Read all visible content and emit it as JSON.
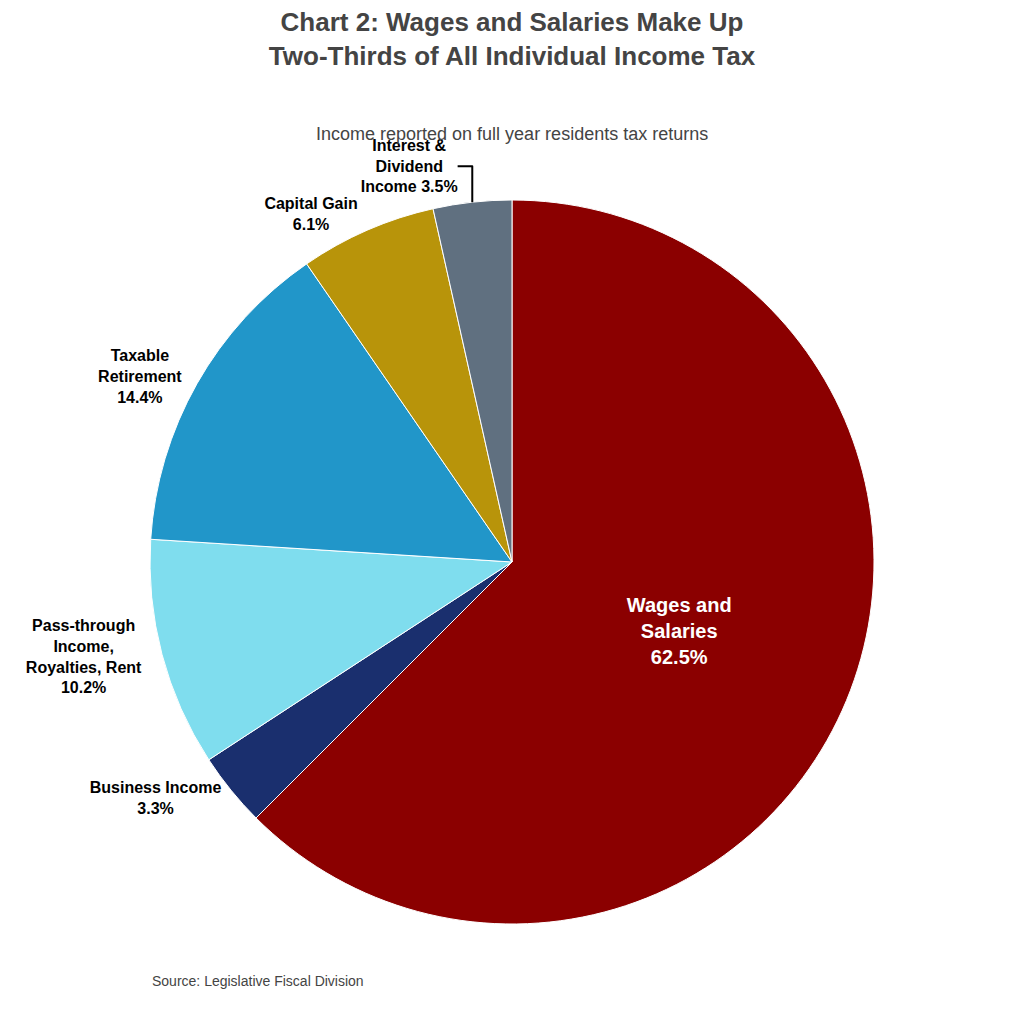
{
  "chart_data": {
    "type": "pie",
    "title": "Chart 2: Wages and Salaries Make Up\nTwo-Thirds of All Individual Income Tax",
    "subtitle": "Income reported on full year residents tax returns",
    "annotations": [
      "Source: Legislative Fiscal Division"
    ],
    "categories": [
      "Wages and\nSalaries\n62.5%",
      "Business Income\n3.3%",
      "Pass-through\nIncome,\nRoyalties, Rent\n10.2%",
      "Taxable\nRetirement\n14.4%",
      "Capital Gain\n6.1%",
      "Interest &\nDividend\nIncome 3.5%"
    ],
    "values": [
      62.5,
      3.3,
      10.2,
      14.4,
      6.1,
      3.5
    ],
    "colors": [
      "#8B0000",
      "#1a2f6e",
      "#7FDDEE",
      "#2196C9",
      "#B8940A",
      "#607080"
    ]
  }
}
